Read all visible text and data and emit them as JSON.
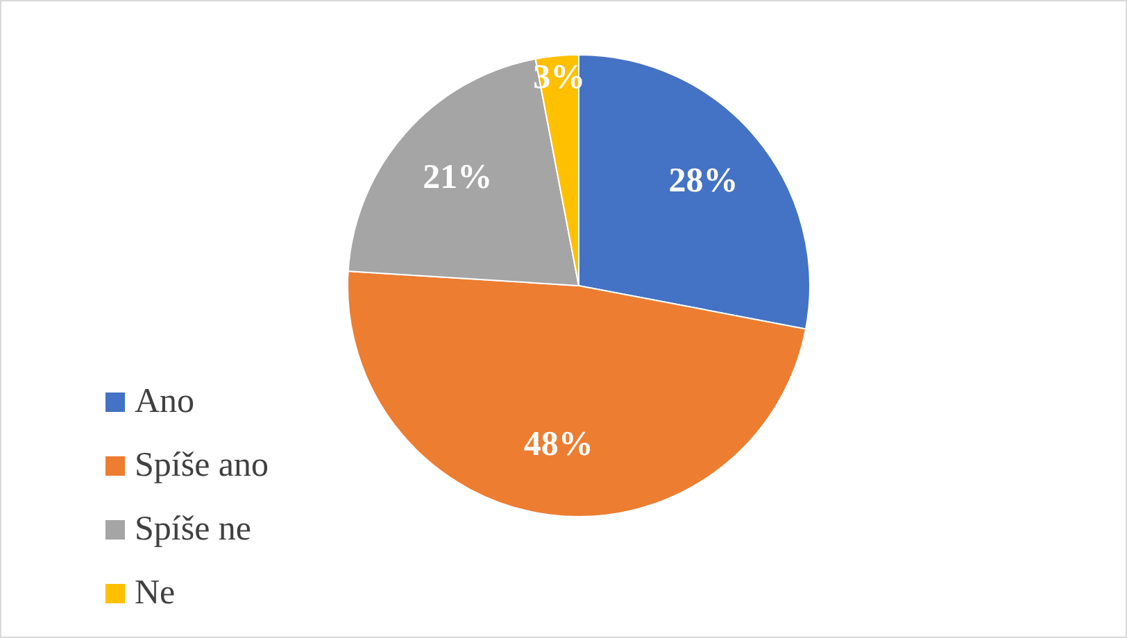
{
  "chart_data": {
    "type": "pie",
    "categories": [
      "Ano",
      "Spíše ano",
      "Spíše ne",
      "Ne"
    ],
    "values": [
      28,
      48,
      21,
      3
    ],
    "colors": [
      "#4472c4",
      "#ed7d31",
      "#a5a5a5",
      "#ffc000"
    ],
    "value_labels": [
      "28%",
      "48%",
      "21%",
      "3%"
    ],
    "legend": "bottom left"
  }
}
